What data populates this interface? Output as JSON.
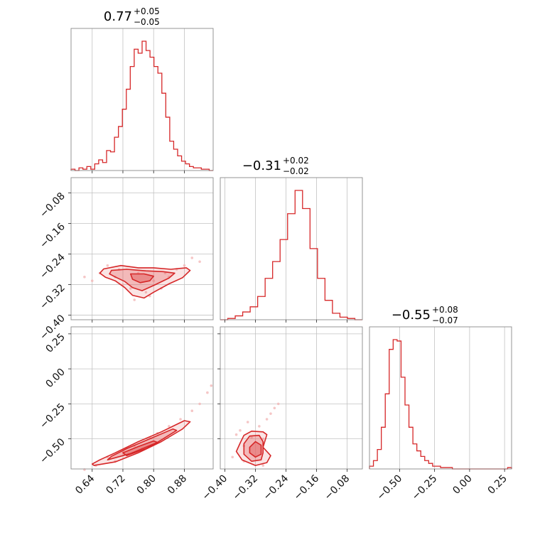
{
  "figure": {
    "type": "corner-plot",
    "accent": "#d62728",
    "fill_color": "#e46a6b",
    "sample_color": "#f2b8b8"
  },
  "chart_data": {
    "type": "corner",
    "parameters": [
      {
        "title_main": "0.77",
        "title_plus": "+0.05",
        "title_minus": "−0.05",
        "median": 0.77,
        "err_plus": 0.05,
        "err_minus": 0.05,
        "range": [
          0.585,
          0.955
        ],
        "ticks": [
          0.64,
          0.72,
          0.8,
          0.88
        ],
        "tick_labels": [
          "0.64",
          "0.72",
          "0.80",
          "0.88"
        ],
        "hist": [
          0.01,
          0.0,
          0.02,
          0.01,
          0.03,
          0.01,
          0.05,
          0.08,
          0.06,
          0.15,
          0.14,
          0.25,
          0.33,
          0.46,
          0.61,
          0.78,
          0.91,
          0.88,
          0.97,
          0.9,
          0.85,
          0.78,
          0.73,
          0.58,
          0.4,
          0.22,
          0.16,
          0.11,
          0.07,
          0.05,
          0.03,
          0.02,
          0.02,
          0.01,
          0.01,
          0.0
        ]
      },
      {
        "title_main": "−0.31",
        "title_plus": "+0.02",
        "title_minus": "−0.02",
        "median": -0.31,
        "err_plus": 0.02,
        "err_minus": 0.02,
        "range": [
          -0.412,
          -0.04
        ],
        "ticks": [
          -0.4,
          -0.32,
          -0.24,
          -0.16,
          -0.08
        ],
        "tick_labels": [
          "−0.40",
          "−0.32",
          "−0.24",
          "−0.16",
          "−0.08"
        ],
        "hist": [
          0.0,
          0.01,
          0.03,
          0.06,
          0.1,
          0.18,
          0.32,
          0.45,
          0.62,
          0.82,
          1.0,
          0.86,
          0.55,
          0.32,
          0.15,
          0.05,
          0.02,
          0.01,
          0.0
        ]
      },
      {
        "title_main": "−0.55",
        "title_plus": "+0.08",
        "title_minus": "−0.07",
        "median": -0.55,
        "err_plus": 0.08,
        "err_minus": 0.07,
        "range": [
          -0.715,
          0.3
        ],
        "ticks": [
          -0.5,
          -0.25,
          0.0,
          0.25
        ],
        "tick_labels": [
          "−0.50",
          "−0.25",
          "0.00",
          "0.25"
        ],
        "hist": [
          0.02,
          0.06,
          0.14,
          0.3,
          0.54,
          0.86,
          0.93,
          0.92,
          0.66,
          0.46,
          0.3,
          0.18,
          0.13,
          0.09,
          0.06,
          0.04,
          0.02,
          0.02,
          0.01,
          0.01,
          0.01,
          0.0,
          0.0,
          0.0,
          0.0,
          0.0,
          0.0,
          0.0,
          0.0,
          0.0,
          0.0,
          0.0,
          0.0,
          0.0,
          0.0,
          0.01
        ]
      }
    ],
    "pairs": [
      {
        "x_param": 0,
        "y_param": 1,
        "samples": [
          [
            0.66,
            -0.29
          ],
          [
            0.68,
            -0.27
          ],
          [
            0.7,
            -0.3
          ],
          [
            0.72,
            -0.32
          ],
          [
            0.74,
            -0.33
          ],
          [
            0.76,
            -0.29
          ],
          [
            0.78,
            -0.34
          ],
          [
            0.8,
            -0.31
          ],
          [
            0.82,
            -0.33
          ],
          [
            0.84,
            -0.3
          ],
          [
            0.86,
            -0.28
          ],
          [
            0.88,
            -0.27
          ],
          [
            0.9,
            -0.25
          ],
          [
            0.92,
            -0.26
          ],
          [
            0.64,
            -0.31
          ],
          [
            0.62,
            -0.3
          ],
          [
            0.75,
            -0.36
          ],
          [
            0.79,
            -0.35
          ],
          [
            0.83,
            -0.29
          ],
          [
            0.71,
            -0.28
          ]
        ],
        "contours": [
          {
            "level": "outer",
            "points": [
              [
                0.67,
                -0.279
              ],
              [
                0.715,
                -0.27
              ],
              [
                0.76,
                -0.276
              ],
              [
                0.8,
                -0.276
              ],
              [
                0.845,
                -0.28
              ],
              [
                0.885,
                -0.276
              ],
              [
                0.895,
                -0.283
              ],
              [
                0.875,
                -0.302
              ],
              [
                0.84,
                -0.318
              ],
              [
                0.8,
                -0.34
              ],
              [
                0.775,
                -0.355
              ],
              [
                0.745,
                -0.348
              ],
              [
                0.725,
                -0.328
              ],
              [
                0.7,
                -0.31
              ],
              [
                0.675,
                -0.301
              ],
              [
                0.66,
                -0.29
              ]
            ]
          },
          {
            "level": "middle",
            "points": [
              [
                0.69,
                -0.283
              ],
              [
                0.73,
                -0.28
              ],
              [
                0.78,
                -0.284
              ],
              [
                0.825,
                -0.286
              ],
              [
                0.855,
                -0.29
              ],
              [
                0.84,
                -0.303
              ],
              [
                0.805,
                -0.32
              ],
              [
                0.77,
                -0.336
              ],
              [
                0.745,
                -0.328
              ],
              [
                0.725,
                -0.312
              ],
              [
                0.7,
                -0.3
              ],
              [
                0.685,
                -0.292
              ]
            ]
          },
          {
            "level": "inner",
            "points": [
              [
                0.74,
                -0.292
              ],
              [
                0.775,
                -0.292
              ],
              [
                0.8,
                -0.298
              ],
              [
                0.79,
                -0.31
              ],
              [
                0.765,
                -0.315
              ],
              [
                0.745,
                -0.306
              ]
            ]
          }
        ]
      },
      {
        "x_param": 0,
        "y_param": 2,
        "samples": [
          [
            0.62,
            -0.72
          ],
          [
            0.65,
            -0.69
          ],
          [
            0.68,
            -0.63
          ],
          [
            0.7,
            -0.66
          ],
          [
            0.72,
            -0.59
          ],
          [
            0.75,
            -0.55
          ],
          [
            0.77,
            -0.57
          ],
          [
            0.79,
            -0.49
          ],
          [
            0.81,
            -0.46
          ],
          [
            0.84,
            -0.41
          ],
          [
            0.87,
            -0.36
          ],
          [
            0.9,
            -0.3
          ],
          [
            0.92,
            -0.25
          ],
          [
            0.94,
            -0.17
          ],
          [
            0.95,
            -0.12
          ]
        ],
        "contours": [
          {
            "level": "outer",
            "points": [
              [
                0.645,
                -0.69
              ],
              [
                0.7,
                -0.665
              ],
              [
                0.76,
                -0.6
              ],
              [
                0.82,
                -0.52
              ],
              [
                0.875,
                -0.43
              ],
              [
                0.895,
                -0.378
              ],
              [
                0.88,
                -0.37
              ],
              [
                0.82,
                -0.45
              ],
              [
                0.76,
                -0.52
              ],
              [
                0.7,
                -0.6
              ],
              [
                0.66,
                -0.65
              ],
              [
                0.64,
                -0.68
              ]
            ]
          },
          {
            "level": "middle",
            "points": [
              [
                0.68,
                -0.65
              ],
              [
                0.74,
                -0.605
              ],
              [
                0.81,
                -0.525
              ],
              [
                0.86,
                -0.44
              ],
              [
                0.85,
                -0.43
              ],
              [
                0.79,
                -0.5
              ],
              [
                0.73,
                -0.57
              ],
              [
                0.69,
                -0.625
              ]
            ]
          },
          {
            "level": "inner",
            "points": [
              [
                0.73,
                -0.62
              ],
              [
                0.78,
                -0.57
              ],
              [
                0.81,
                -0.525
              ],
              [
                0.8,
                -0.515
              ],
              [
                0.76,
                -0.555
              ],
              [
                0.72,
                -0.6
              ]
            ]
          }
        ]
      },
      {
        "x_param": 1,
        "y_param": 2,
        "samples": [
          [
            -0.37,
            -0.47
          ],
          [
            -0.36,
            -0.44
          ],
          [
            -0.35,
            -0.55
          ],
          [
            -0.34,
            -0.38
          ],
          [
            -0.33,
            -0.49
          ],
          [
            -0.32,
            -0.62
          ],
          [
            -0.31,
            -0.41
          ],
          [
            -0.3,
            -0.5
          ],
          [
            -0.29,
            -0.36
          ],
          [
            -0.28,
            -0.32
          ],
          [
            -0.27,
            -0.28
          ],
          [
            -0.26,
            -0.25
          ],
          [
            -0.38,
            -0.63
          ],
          [
            -0.35,
            -0.66
          ],
          [
            -0.3,
            -0.69
          ]
        ],
        "contours": [
          {
            "level": "outer",
            "points": [
              [
                -0.36,
                -0.53
              ],
              [
                -0.35,
                -0.475
              ],
              [
                -0.33,
                -0.445
              ],
              [
                -0.3,
                -0.45
              ],
              [
                -0.29,
                -0.47
              ],
              [
                -0.3,
                -0.56
              ],
              [
                -0.28,
                -0.62
              ],
              [
                -0.29,
                -0.67
              ],
              [
                -0.32,
                -0.69
              ],
              [
                -0.355,
                -0.65
              ],
              [
                -0.37,
                -0.59
              ]
            ]
          },
          {
            "level": "middle",
            "points": [
              [
                -0.35,
                -0.535
              ],
              [
                -0.335,
                -0.48
              ],
              [
                -0.31,
                -0.475
              ],
              [
                -0.3,
                -0.52
              ],
              [
                -0.3,
                -0.6
              ],
              [
                -0.305,
                -0.65
              ],
              [
                -0.33,
                -0.66
              ],
              [
                -0.35,
                -0.61
              ]
            ]
          },
          {
            "level": "inner",
            "points": [
              [
                -0.335,
                -0.56
              ],
              [
                -0.32,
                -0.52
              ],
              [
                -0.305,
                -0.545
              ],
              [
                -0.305,
                -0.61
              ],
              [
                -0.32,
                -0.63
              ],
              [
                -0.335,
                -0.6
              ]
            ]
          }
        ]
      }
    ]
  }
}
